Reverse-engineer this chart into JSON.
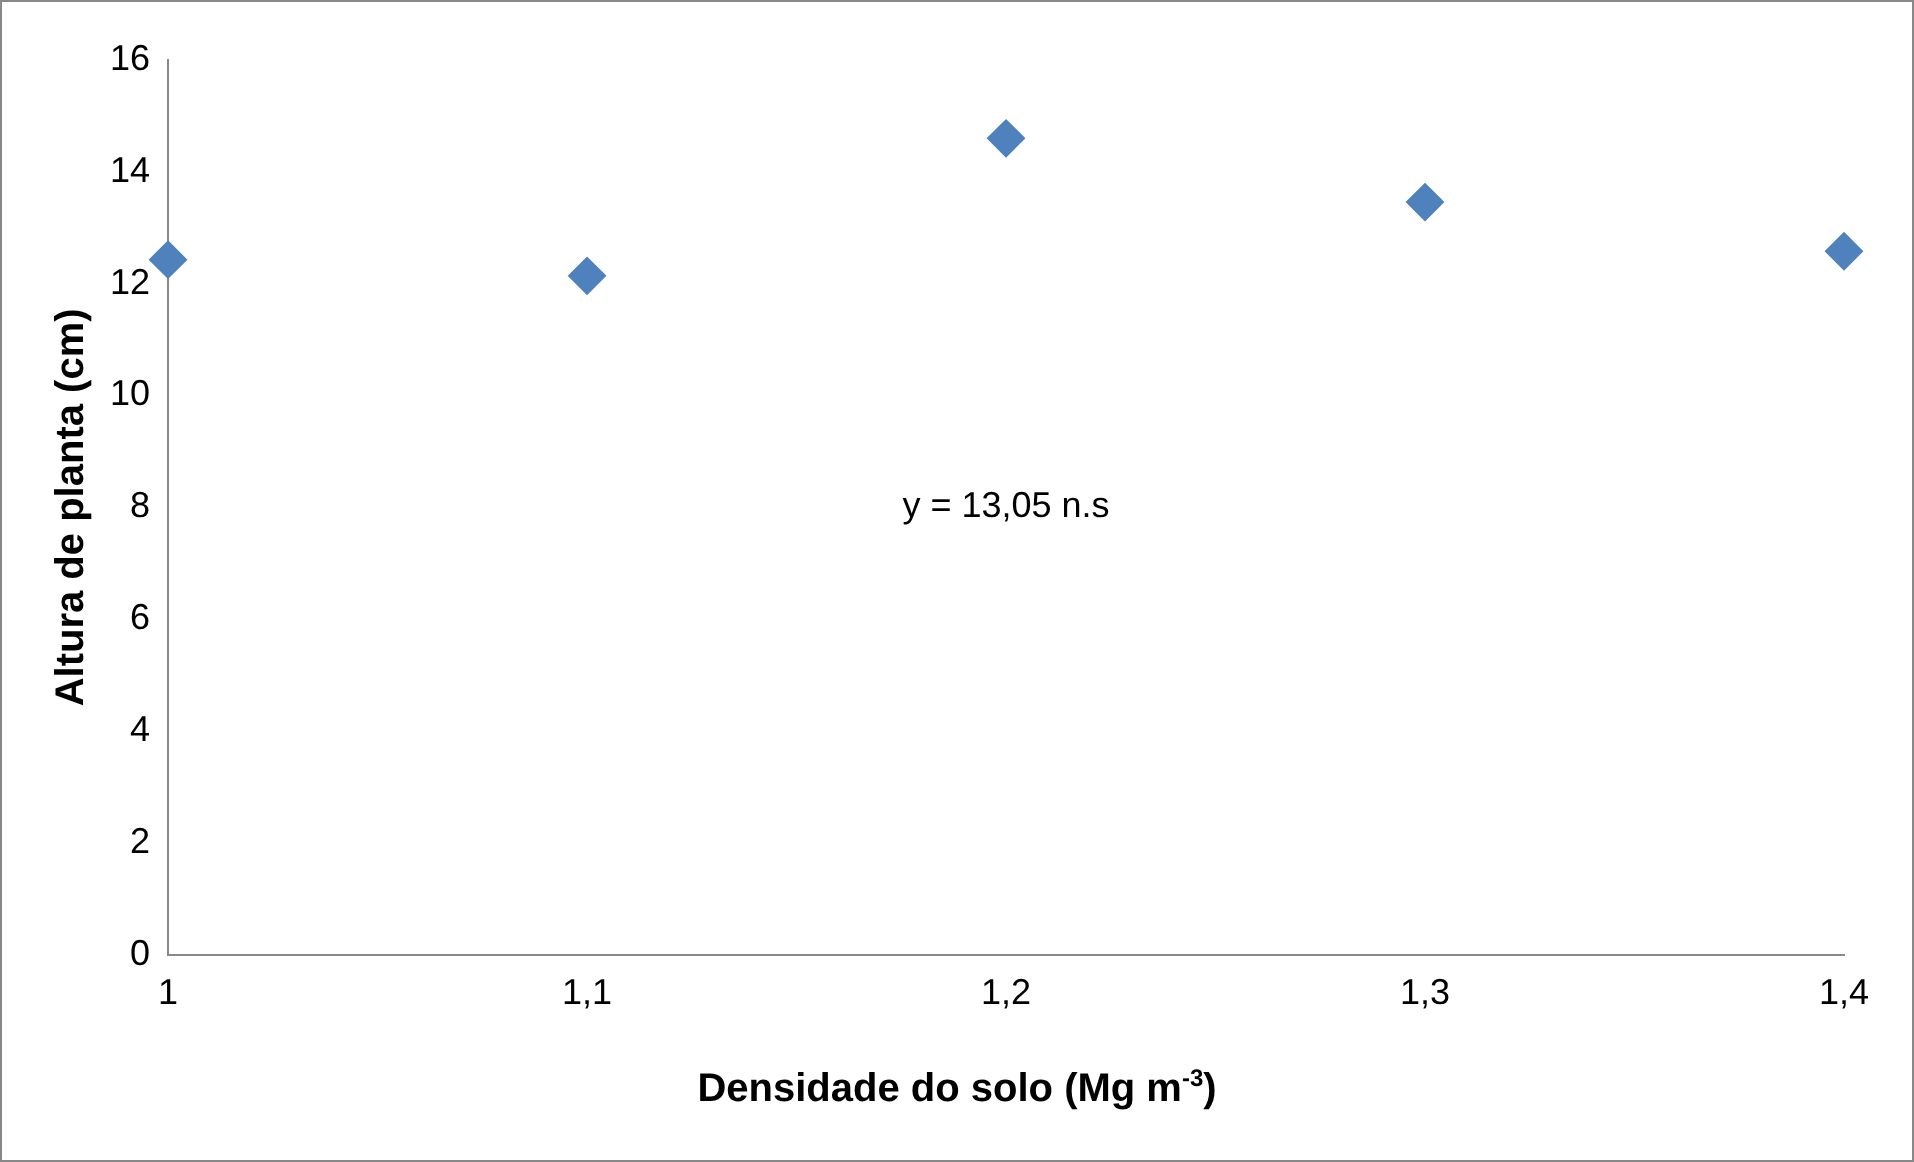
{
  "chart_data": {
    "type": "scatter",
    "xlabel": "Densidade do solo (Mg m$^{-3}$)",
    "ylabel": "Altura de planta (cm)",
    "x": [
      1,
      1.1,
      1.2,
      1.3,
      1.4
    ],
    "series": [
      {
        "color": "#4f81bd",
        "values": [
          12.43,
          12.14,
          14.6,
          13.46,
          12.58
        ]
      }
    ],
    "xlim": [
      1,
      1.4
    ],
    "xticks": [
      {
        "value": 1,
        "label": "1"
      },
      {
        "value": 1.1,
        "label": "1,1"
      },
      {
        "value": 1.2,
        "label": "1,2"
      },
      {
        "value": 1.3,
        "label": "1,3"
      },
      {
        "value": 1.4,
        "label": "1,4"
      }
    ],
    "ylim": [
      0,
      16
    ],
    "yticks": [
      0,
      2,
      4,
      6,
      8,
      10,
      12,
      14,
      16
    ],
    "annotations": [
      "y = 13,05 n.s"
    ],
    "marker": "diamond",
    "grid": false,
    "legend": false
  }
}
